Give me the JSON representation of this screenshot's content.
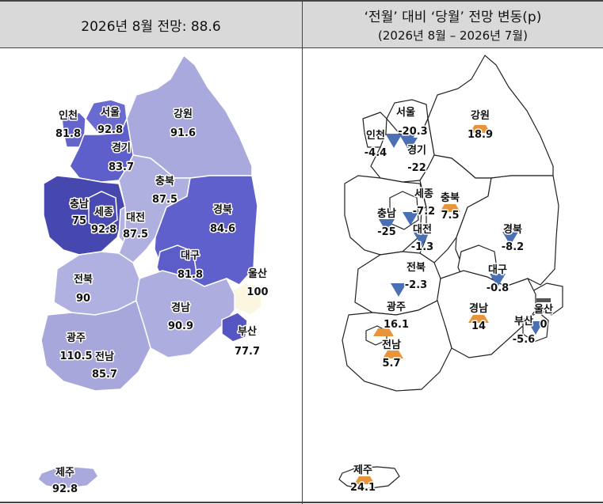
{
  "left_panel": {
    "title": "2026년 8월 전망: 88.6",
    "regions": [
      {
        "id": "seoul",
        "name": "서울",
        "value": "92.8",
        "fill": "#6a6bd0"
      },
      {
        "id": "incheon",
        "name": "인천",
        "value": "81.8",
        "fill": "#6364cc"
      },
      {
        "id": "gyeonggi",
        "name": "경기",
        "value": "83.7",
        "fill": "#5e5fca"
      },
      {
        "id": "gangwon",
        "name": "강원",
        "value": "91.6",
        "fill": "#a9a9de"
      },
      {
        "id": "chungnam",
        "name": "충남",
        "value": "75",
        "fill": "#4747b0"
      },
      {
        "id": "sejong",
        "name": "세종",
        "value": "92.8",
        "fill": "#4a4ab4"
      },
      {
        "id": "daejeon",
        "name": "대전",
        "value": "87.5",
        "fill": "#b3b3e2"
      },
      {
        "id": "chungbuk",
        "name": "충북",
        "value": "87.5",
        "fill": "#b0b0e0"
      },
      {
        "id": "gyeongbuk",
        "name": "경북",
        "value": "84.6",
        "fill": "#5f60cc"
      },
      {
        "id": "daegu",
        "name": "대구",
        "value": "81.8",
        "fill": "#5c5dc8"
      },
      {
        "id": "ulsan",
        "name": "울산",
        "value": "100",
        "fill": "#fbf6e0"
      },
      {
        "id": "jeonbuk",
        "name": "전북",
        "value": "90",
        "fill": "#b1b1e1"
      },
      {
        "id": "gyeongnam",
        "name": "경남",
        "value": "90.9",
        "fill": "#adade0"
      },
      {
        "id": "busan",
        "name": "부산",
        "value": "77.7",
        "fill": "#5556c2"
      },
      {
        "id": "gwangju",
        "name": "광주",
        "value": "110.5",
        "fill": "#fbf6e0"
      },
      {
        "id": "jeonnam",
        "name": "전남",
        "value": "85.7",
        "fill": "#a7a7dc"
      },
      {
        "id": "jeju",
        "name": "제주",
        "value": "92.8",
        "fill": "#a9a9de"
      }
    ]
  },
  "right_panel": {
    "title": "‘전월’ 대비 ‘당월’ 전망 변동(p)",
    "subtitle": "(2026년 8월 – 2026년 7월)",
    "colors": {
      "up": "#e8943a",
      "down": "#4a6fb5",
      "flat": "#555555"
    },
    "regions": [
      {
        "id": "seoul",
        "name": "서울",
        "value": "-20.3",
        "dir": "down"
      },
      {
        "id": "incheon",
        "name": "인천",
        "value": "-4.4",
        "dir": "down"
      },
      {
        "id": "gyeonggi",
        "name": "경기",
        "value": "-22",
        "dir": "down"
      },
      {
        "id": "gangwon",
        "name": "강원",
        "value": "18.9",
        "dir": "up"
      },
      {
        "id": "sejong",
        "name": "세종",
        "value": "-7.2",
        "dir": "down"
      },
      {
        "id": "chungbuk",
        "name": "충북",
        "value": "7.5",
        "dir": "up"
      },
      {
        "id": "chungnam",
        "name": "충남",
        "value": "-25",
        "dir": "down"
      },
      {
        "id": "daejeon",
        "name": "대전",
        "value": "-1.3",
        "dir": "down"
      },
      {
        "id": "gyeongbuk",
        "name": "경북",
        "value": "-8.2",
        "dir": "down"
      },
      {
        "id": "daegu",
        "name": "대구",
        "value": "-0.8",
        "dir": "down"
      },
      {
        "id": "jeonbuk",
        "name": "전북",
        "value": "-2.3",
        "dir": "down"
      },
      {
        "id": "ulsan",
        "name": "울산",
        "value": "0",
        "dir": "flat"
      },
      {
        "id": "gwangju",
        "name": "광주",
        "value": "16.1",
        "dir": "up"
      },
      {
        "id": "gyeongnam",
        "name": "경남",
        "value": "14",
        "dir": "up"
      },
      {
        "id": "busan",
        "name": "부산",
        "value": "-5.6",
        "dir": "down"
      },
      {
        "id": "jeonnam",
        "name": "전남",
        "value": "5.7",
        "dir": "up"
      },
      {
        "id": "jeju",
        "name": "제주",
        "value": "24.1",
        "dir": "up"
      }
    ]
  }
}
